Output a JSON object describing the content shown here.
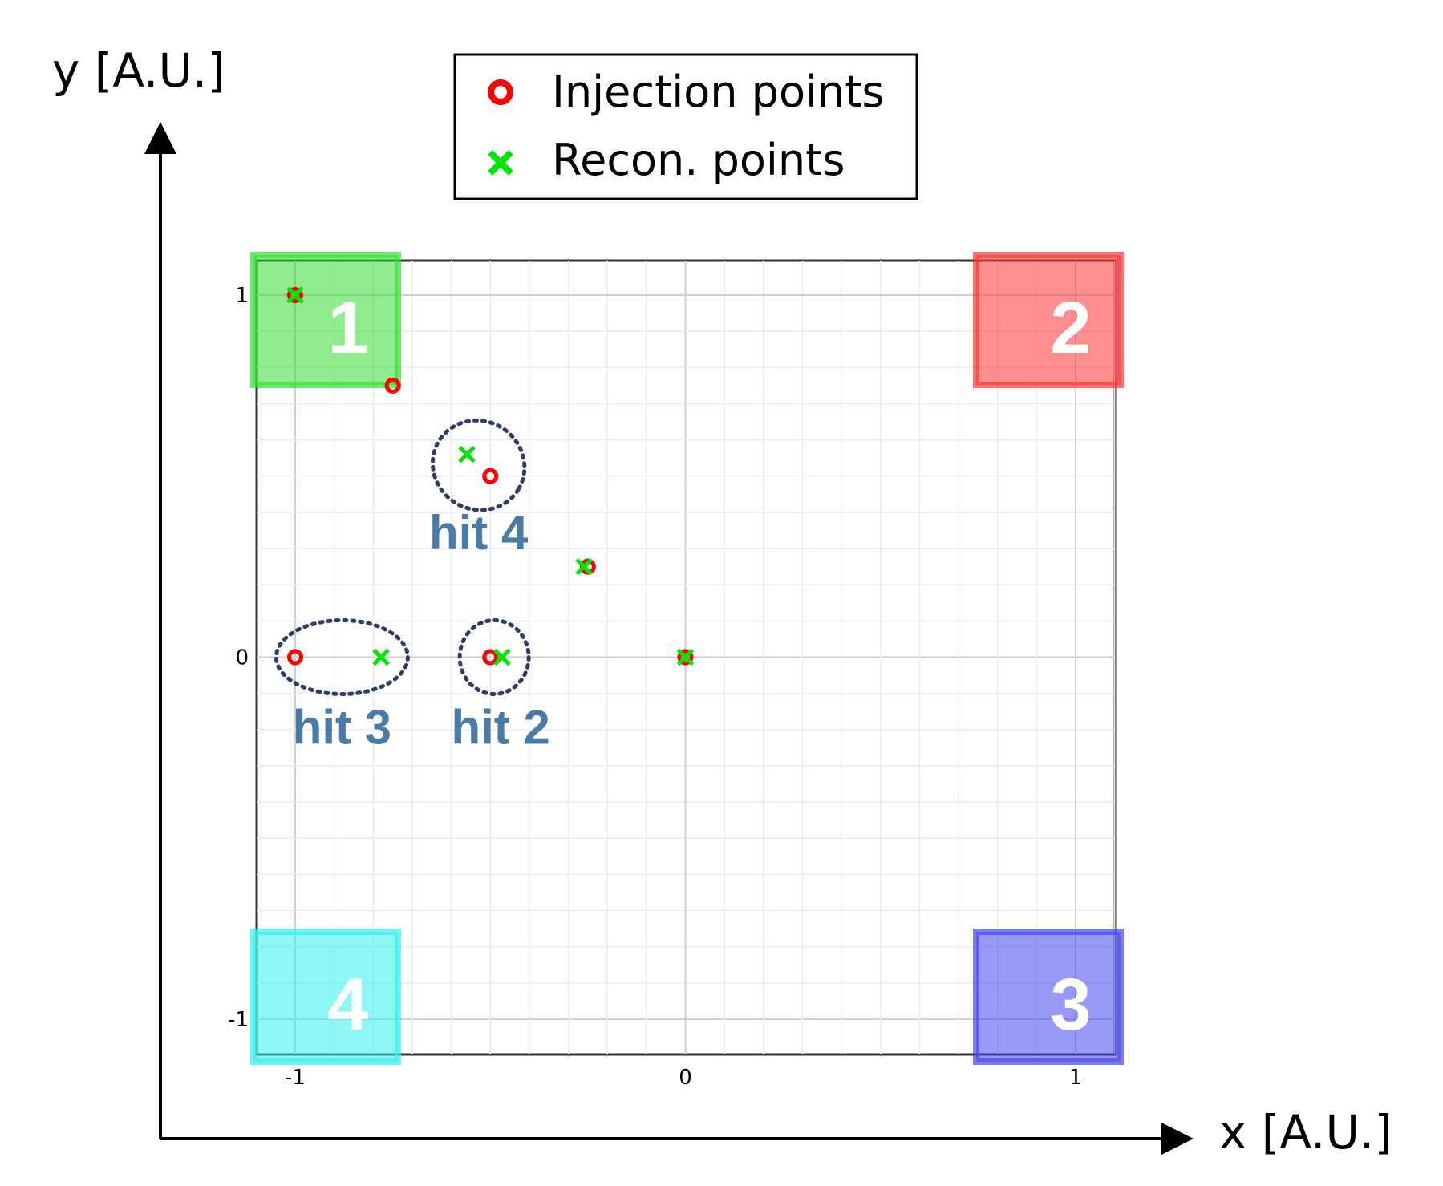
{
  "chart_data": {
    "type": "scatter",
    "xlabel": "x [A.U.]",
    "ylabel": "y [A.U.]",
    "xlim": [
      -1.1,
      1.1
    ],
    "ylim": [
      -1.1,
      1.0
    ],
    "x_ticks": [
      -1,
      0,
      1
    ],
    "y_ticks": [
      1,
      0,
      -1
    ],
    "x_tick_labels": [
      "-1",
      "0",
      "1"
    ],
    "y_tick_labels": [
      "1",
      "0",
      "-1"
    ],
    "grid": true,
    "legend": {
      "placement": "top-center"
    },
    "series": [
      {
        "name": "Injection points",
        "marker": "circle",
        "color": "#ff0000",
        "points": [
          {
            "x": -1.0,
            "y": 1.0
          },
          {
            "x": -0.75,
            "y": 0.75
          },
          {
            "x": -0.5,
            "y": 0.5
          },
          {
            "x": -0.25,
            "y": 0.25
          },
          {
            "x": 0.0,
            "y": 0.0
          },
          {
            "x": -1.0,
            "y": 0.0
          },
          {
            "x": -0.5,
            "y": 0.0
          }
        ]
      },
      {
        "name": "Recon. points",
        "marker": "x",
        "color": "#00e600",
        "points": [
          {
            "x": -1.0,
            "y": 1.0
          },
          {
            "x": -0.56,
            "y": 0.56
          },
          {
            "x": -0.26,
            "y": 0.25
          },
          {
            "x": 0.0,
            "y": 0.0
          },
          {
            "x": -0.78,
            "y": 0.0
          },
          {
            "x": -0.47,
            "y": 0.0
          }
        ]
      }
    ],
    "corners": [
      {
        "label": "1",
        "color": "#33dd33",
        "position": "top-left"
      },
      {
        "label": "2",
        "color": "#ff3333",
        "position": "top-right"
      },
      {
        "label": "3",
        "color": "#4444ee",
        "position": "bottom-right"
      },
      {
        "label": "4",
        "color": "#33eeee",
        "position": "bottom-left"
      }
    ],
    "annotations": [
      {
        "label": "hit 4",
        "x": -0.53,
        "y": 0.53
      },
      {
        "label": "hit 3",
        "x": -0.88,
        "y": 0.0
      },
      {
        "label": "hit 2",
        "x": -0.49,
        "y": 0.0
      }
    ]
  }
}
